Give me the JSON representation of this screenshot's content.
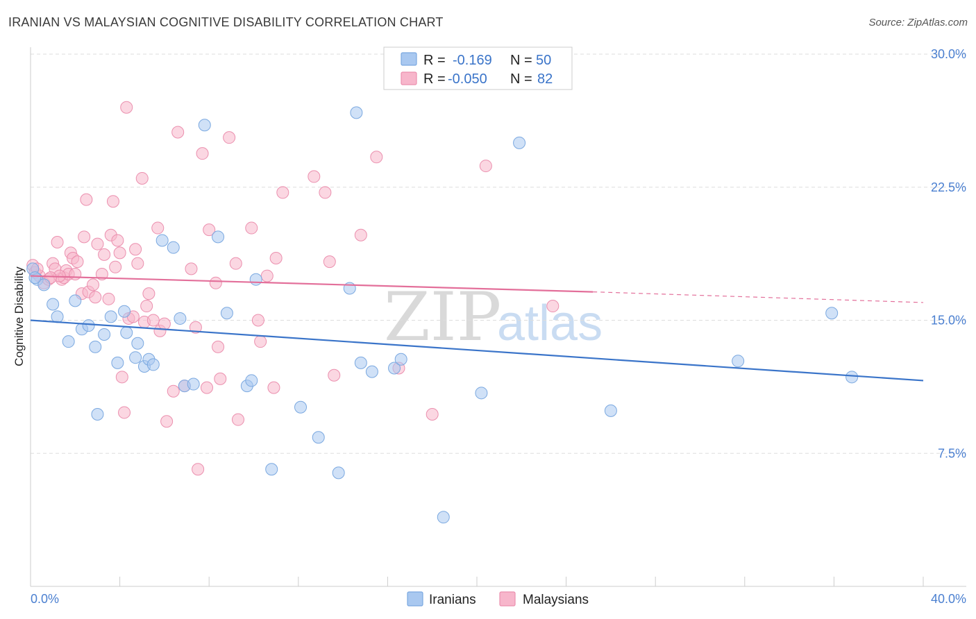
{
  "header": {
    "title": "IRANIAN VS MALAYSIAN COGNITIVE DISABILITY CORRELATION CHART",
    "source": "Source: ZipAtlas.com"
  },
  "watermark": {
    "zip": "ZIP",
    "atlas": "atlas"
  },
  "legend": {
    "r_label": "R =",
    "n_label": "N =",
    "entries": [
      {
        "r": "-0.169",
        "n": "50",
        "color": "#a9c8f0"
      },
      {
        "r": "-0.050",
        "n": "82",
        "color": "#f7b6cb"
      }
    ]
  },
  "chart_data": {
    "type": "scatter",
    "title": "IRANIAN VS MALAYSIAN COGNITIVE DISABILITY CORRELATION CHART",
    "xlabel": "",
    "ylabel": "Cognitive Disability",
    "xlim": [
      0,
      40
    ],
    "ylim": [
      0,
      30
    ],
    "x_tick_labels": [
      "0.0%",
      "40.0%"
    ],
    "y_ticks": [
      7.5,
      15.0,
      22.5,
      30.0
    ],
    "y_tick_labels": [
      "7.5%",
      "15.0%",
      "22.5%",
      "30.0%"
    ],
    "grid": "horizontal dashed",
    "legend_position": "top-center",
    "series": [
      {
        "name": "Iranians",
        "color": "#a9c8f0",
        "stroke": "#7aa8e0",
        "trend": {
          "x": [
            0,
            40
          ],
          "y": [
            15.0,
            11.6
          ],
          "color": "#3a74c9"
        },
        "points": [
          [
            0.1,
            17.9
          ],
          [
            0.3,
            17.3
          ],
          [
            0.6,
            17.0
          ],
          [
            1.0,
            15.9
          ],
          [
            1.2,
            15.2
          ],
          [
            1.7,
            13.8
          ],
          [
            2.0,
            16.1
          ],
          [
            2.3,
            14.5
          ],
          [
            2.6,
            14.7
          ],
          [
            2.9,
            13.5
          ],
          [
            3.0,
            9.7
          ],
          [
            3.3,
            14.2
          ],
          [
            3.6,
            15.2
          ],
          [
            3.9,
            12.6
          ],
          [
            4.2,
            15.5
          ],
          [
            4.3,
            14.3
          ],
          [
            4.7,
            12.9
          ],
          [
            4.8,
            13.7
          ],
          [
            5.1,
            12.4
          ],
          [
            5.3,
            12.8
          ],
          [
            5.5,
            12.5
          ],
          [
            5.9,
            19.5
          ],
          [
            6.4,
            19.1
          ],
          [
            6.7,
            15.1
          ],
          [
            6.9,
            11.3
          ],
          [
            7.3,
            11.4
          ],
          [
            7.8,
            26.0
          ],
          [
            8.4,
            19.7
          ],
          [
            8.8,
            15.4
          ],
          [
            9.7,
            11.3
          ],
          [
            9.9,
            11.6
          ],
          [
            10.1,
            17.3
          ],
          [
            10.8,
            6.6
          ],
          [
            12.1,
            10.1
          ],
          [
            12.9,
            8.4
          ],
          [
            13.8,
            6.4
          ],
          [
            14.3,
            16.8
          ],
          [
            14.6,
            26.7
          ],
          [
            14.8,
            12.6
          ],
          [
            15.3,
            12.1
          ],
          [
            16.3,
            12.3
          ],
          [
            16.6,
            12.8
          ],
          [
            18.5,
            3.9
          ],
          [
            20.2,
            10.9
          ],
          [
            21.9,
            25.0
          ],
          [
            26.0,
            9.9
          ],
          [
            31.7,
            12.7
          ],
          [
            35.9,
            15.4
          ],
          [
            36.8,
            11.8
          ],
          [
            0.2,
            17.4
          ]
        ]
      },
      {
        "name": "Malaysians",
        "color": "#f7b6cb",
        "stroke": "#eb8fae",
        "trend": {
          "x": [
            0,
            25.2
          ],
          "y": [
            17.5,
            16.6
          ],
          "color": "#e36f9a",
          "dashed_to": [
            40,
            16.0
          ]
        },
        "points": [
          [
            0.1,
            18.1
          ],
          [
            0.2,
            17.7
          ],
          [
            0.4,
            17.5
          ],
          [
            0.6,
            17.1
          ],
          [
            0.8,
            17.3
          ],
          [
            1.0,
            18.2
          ],
          [
            1.1,
            17.9
          ],
          [
            1.2,
            19.4
          ],
          [
            1.4,
            17.3
          ],
          [
            1.5,
            17.4
          ],
          [
            1.6,
            17.8
          ],
          [
            1.7,
            17.6
          ],
          [
            1.8,
            18.8
          ],
          [
            1.9,
            18.5
          ],
          [
            2.0,
            17.6
          ],
          [
            2.1,
            18.3
          ],
          [
            2.3,
            16.5
          ],
          [
            2.4,
            19.7
          ],
          [
            2.5,
            21.8
          ],
          [
            2.6,
            16.6
          ],
          [
            2.8,
            17.0
          ],
          [
            2.9,
            16.3
          ],
          [
            3.0,
            19.3
          ],
          [
            3.2,
            17.6
          ],
          [
            3.3,
            18.7
          ],
          [
            3.5,
            16.2
          ],
          [
            3.6,
            19.8
          ],
          [
            3.7,
            21.7
          ],
          [
            3.8,
            18.0
          ],
          [
            3.9,
            19.5
          ],
          [
            4.0,
            18.8
          ],
          [
            4.1,
            11.8
          ],
          [
            4.2,
            9.8
          ],
          [
            4.3,
            27.0
          ],
          [
            4.4,
            15.1
          ],
          [
            4.6,
            15.2
          ],
          [
            4.7,
            19.0
          ],
          [
            4.8,
            18.2
          ],
          [
            5.0,
            23.0
          ],
          [
            5.1,
            14.9
          ],
          [
            5.2,
            15.8
          ],
          [
            5.3,
            16.5
          ],
          [
            5.5,
            15.0
          ],
          [
            5.7,
            20.2
          ],
          [
            5.8,
            14.4
          ],
          [
            6.0,
            14.8
          ],
          [
            6.1,
            9.3
          ],
          [
            6.4,
            11.0
          ],
          [
            6.6,
            25.6
          ],
          [
            6.9,
            11.3
          ],
          [
            7.2,
            17.9
          ],
          [
            7.4,
            14.6
          ],
          [
            7.5,
            6.6
          ],
          [
            7.7,
            24.4
          ],
          [
            7.9,
            11.2
          ],
          [
            8.0,
            20.1
          ],
          [
            8.3,
            17.1
          ],
          [
            8.4,
            13.5
          ],
          [
            8.5,
            11.7
          ],
          [
            8.9,
            25.3
          ],
          [
            9.2,
            18.2
          ],
          [
            9.3,
            9.4
          ],
          [
            9.9,
            20.2
          ],
          [
            10.2,
            15.0
          ],
          [
            10.3,
            13.8
          ],
          [
            10.6,
            17.5
          ],
          [
            10.9,
            11.2
          ],
          [
            11.0,
            18.5
          ],
          [
            11.3,
            22.2
          ],
          [
            12.7,
            23.1
          ],
          [
            13.2,
            22.2
          ],
          [
            13.4,
            18.3
          ],
          [
            13.6,
            11.9
          ],
          [
            14.8,
            19.8
          ],
          [
            15.5,
            24.2
          ],
          [
            16.5,
            12.3
          ],
          [
            18.0,
            9.7
          ],
          [
            20.4,
            23.7
          ],
          [
            23.4,
            15.8
          ],
          [
            0.3,
            17.9
          ],
          [
            1.3,
            17.5
          ],
          [
            0.9,
            17.4
          ]
        ]
      }
    ]
  },
  "bottom_legend": [
    "Iranians",
    "Malaysians"
  ]
}
